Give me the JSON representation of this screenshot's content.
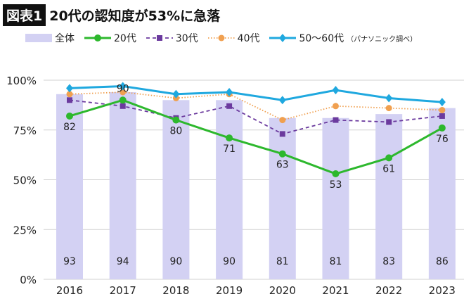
{
  "header": {
    "badge": "図表1",
    "title": "20代の認知度が53%に急落"
  },
  "legend": {
    "note": "（パナソニック調べ）"
  },
  "chart_data": {
    "type": "bar+line",
    "categories": [
      "2016",
      "2017",
      "2018",
      "2019",
      "2020",
      "2021",
      "2022",
      "2023"
    ],
    "ylim": [
      0,
      100
    ],
    "yticks": [
      "0%",
      "25%",
      "50%",
      "75%",
      "100%"
    ],
    "grid": true,
    "legend_position": "top",
    "series": [
      {
        "name": "全体",
        "type": "bar",
        "color": "#d3d1f3",
        "values": [
          93,
          94,
          90,
          90,
          81,
          81,
          83,
          86
        ],
        "labeled": true
      },
      {
        "name": "20代",
        "type": "line",
        "color": "#2db82d",
        "marker": "circle",
        "dash": "solid",
        "values": [
          82,
          90,
          80,
          71,
          63,
          53,
          61,
          76
        ],
        "labeled": true
      },
      {
        "name": "30代",
        "type": "line",
        "color": "#6b3a9e",
        "marker": "square",
        "dash": "dashed",
        "values": [
          90,
          87,
          81,
          87,
          73,
          80,
          79,
          82
        ]
      },
      {
        "name": "40代",
        "type": "line",
        "color": "#f0a050",
        "marker": "circle",
        "dash": "dotted",
        "values": [
          93,
          94,
          91,
          93,
          80,
          87,
          86,
          85
        ]
      },
      {
        "name": "50〜60代",
        "type": "line",
        "color": "#1fa8df",
        "marker": "diamond",
        "dash": "solid",
        "values": [
          96,
          97,
          93,
          94,
          90,
          95,
          91,
          89
        ]
      }
    ]
  }
}
